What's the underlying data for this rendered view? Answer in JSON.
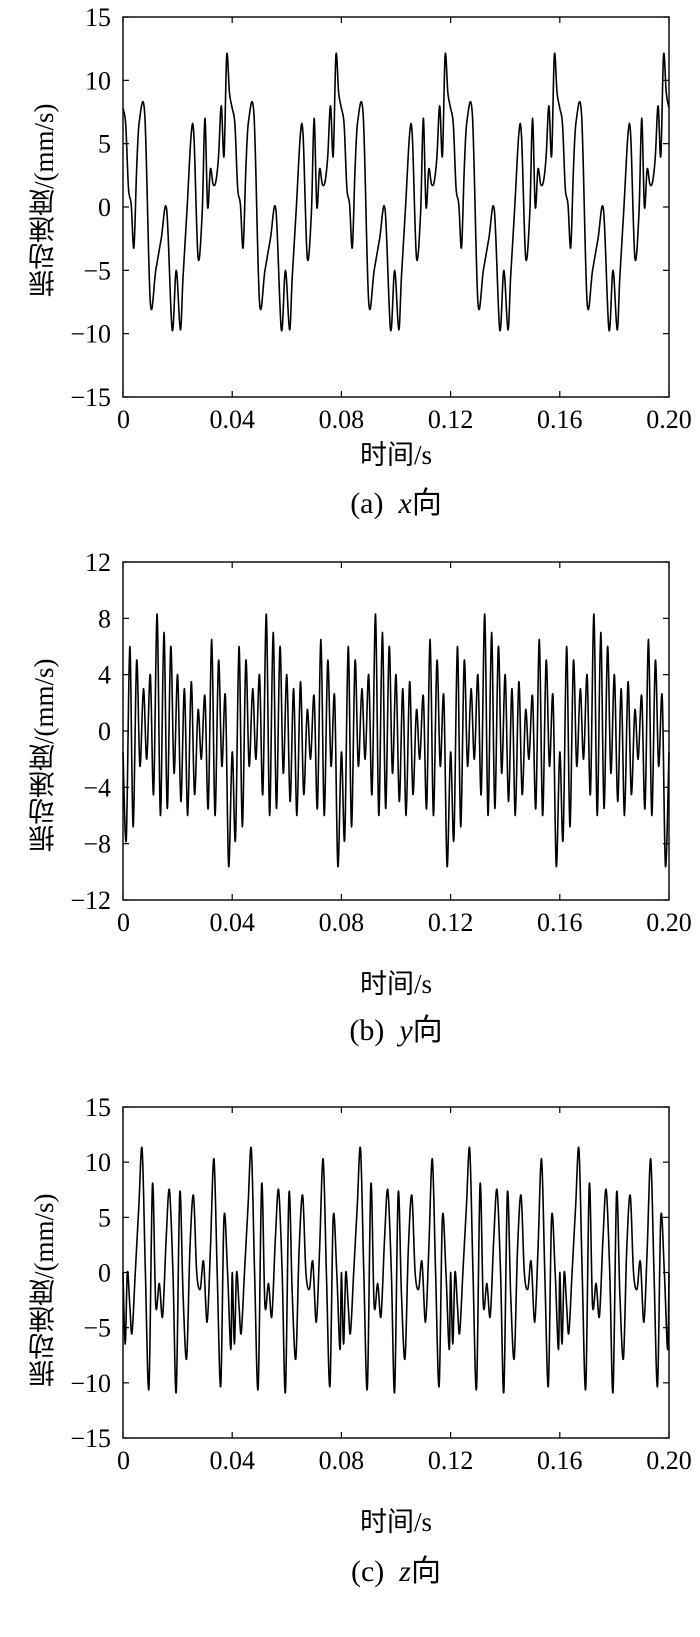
{
  "chart_data": [
    {
      "type": "line",
      "panel_prefix": "(a)",
      "axis_name": "x",
      "direction_suffix": "向",
      "xlabel": "时间/s",
      "ylabel": "振动速度/(mm/s)",
      "xlim": [
        0,
        0.2
      ],
      "ylim": [
        -15,
        15
      ],
      "xticks": [
        "0",
        "0.04",
        "0.08",
        "0.12",
        "0.16",
        "0.20"
      ],
      "yticks": [
        "15",
        "10",
        "5",
        "0",
        "−5",
        "−10",
        "−15"
      ],
      "period_s": 0.04,
      "series": [
        {
          "x": [
            0.0,
            0.001,
            0.002,
            0.003,
            0.004,
            0.005,
            0.006,
            0.008,
            0.01,
            0.012,
            0.014,
            0.016,
            0.018,
            0.0195,
            0.021,
            0.022,
            0.0235,
            0.025,
            0.026,
            0.0275,
            0.029,
            0.03,
            0.031,
            0.032,
            0.033,
            0.034,
            0.035,
            0.036,
            0.037,
            0.038,
            0.039,
            0.04
          ],
          "y": [
            7.8,
            6.5,
            1.5,
            0.2,
            -3.2,
            3.0,
            6.8,
            7.2,
            -7.5,
            -5.0,
            -2.5,
            -0.2,
            -9.7,
            -5.0,
            -9.7,
            -5.5,
            0.0,
            5.8,
            5.5,
            -4.0,
            -0.5,
            7.0,
            0.0,
            3.0,
            1.8,
            2.0,
            4.0,
            8.0,
            4.0,
            12.0,
            9.0,
            7.8
          ]
        }
      ]
    },
    {
      "type": "line",
      "panel_prefix": "(b)",
      "axis_name": "y",
      "direction_suffix": "向",
      "xlabel": "时间/s",
      "ylabel": "振动速度/(mm/s)",
      "xlim": [
        0,
        0.2
      ],
      "ylim": [
        -12,
        12
      ],
      "xticks": [
        "0",
        "0.04",
        "0.08",
        "0.12",
        "0.16",
        "0.20"
      ],
      "yticks": [
        "12",
        "8",
        "4",
        "0",
        "−4",
        "−8",
        "−12"
      ],
      "period_s": 0.04,
      "series": [
        {
          "x": [
            0.0,
            0.0012,
            0.0025,
            0.0037,
            0.005,
            0.0062,
            0.0075,
            0.0087,
            0.01,
            0.0112,
            0.0125,
            0.0137,
            0.015,
            0.0162,
            0.0175,
            0.0187,
            0.02,
            0.0212,
            0.0225,
            0.0237,
            0.025,
            0.0262,
            0.0275,
            0.0287,
            0.03,
            0.0312,
            0.0325,
            0.0337,
            0.035,
            0.0362,
            0.0375,
            0.0387,
            0.04
          ],
          "y": [
            -1.5,
            -7.7,
            6.0,
            -6.8,
            5.0,
            -2.5,
            3.0,
            -2.0,
            4.0,
            -4.5,
            8.3,
            -6.0,
            7.0,
            -5.5,
            6.0,
            -3.0,
            4.0,
            -5.0,
            3.0,
            -6.0,
            3.5,
            -4.5,
            1.5,
            -2.0,
            2.5,
            -5.5,
            6.5,
            -6.0,
            5.0,
            -2.5,
            2.5,
            -9.6,
            -1.5
          ]
        }
      ]
    },
    {
      "type": "line",
      "panel_prefix": "(c)",
      "axis_name": "z",
      "direction_suffix": "向",
      "xlabel": "时间/s",
      "ylabel": "振动速度/(mm/s)",
      "xlim": [
        0,
        0.2
      ],
      "ylim": [
        -15,
        15
      ],
      "xticks": [
        "0",
        "0.04",
        "0.08",
        "0.12",
        "0.16",
        "0.20"
      ],
      "yticks": [
        "15",
        "10",
        "5",
        "0",
        "−5",
        "−10",
        "−15"
      ],
      "period_s": 0.04,
      "series": [
        {
          "x": [
            0.0,
            0.0008,
            0.0016,
            0.0025,
            0.0033,
            0.0045,
            0.0058,
            0.007,
            0.0082,
            0.0095,
            0.0108,
            0.012,
            0.0133,
            0.0145,
            0.0158,
            0.017,
            0.0183,
            0.0195,
            0.0208,
            0.022,
            0.0233,
            0.0245,
            0.0258,
            0.027,
            0.0283,
            0.0295,
            0.0308,
            0.032,
            0.0333,
            0.0345,
            0.0358,
            0.037,
            0.0383,
            0.0395,
            0.04
          ],
          "y": [
            0.0,
            -6.5,
            0.0,
            -3.0,
            -5.5,
            0.0,
            6.0,
            11.2,
            0.0,
            -10.5,
            8.0,
            -3.0,
            -1.0,
            -4.0,
            3.0,
            7.5,
            0.0,
            -10.8,
            7.2,
            -2.0,
            -7.8,
            2.0,
            7.0,
            0.0,
            -1.5,
            1.0,
            -4.5,
            2.0,
            10.3,
            0.0,
            -10.3,
            5.0,
            0.0,
            -7.0,
            0.0
          ]
        }
      ]
    }
  ]
}
